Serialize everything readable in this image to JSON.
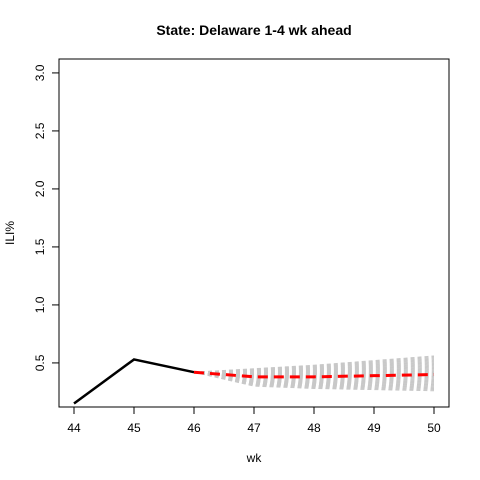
{
  "chart_data": {
    "type": "line",
    "title": "State: Delaware 1-4 wk ahead",
    "xlabel": "wk",
    "ylabel": "ILI%",
    "xlim": [
      44,
      50
    ],
    "ylim": [
      0.12,
      3.12
    ],
    "x_ticks": [
      "44",
      "45",
      "46",
      "47",
      "48",
      "49",
      "50"
    ],
    "y_ticks": [
      "0.5",
      "1.0",
      "1.5",
      "2.0",
      "2.5",
      "3.0"
    ],
    "grid": false,
    "legend": "none",
    "series": [
      {
        "role": "observed",
        "color": "#000000",
        "style": "solid",
        "x": [
          44,
          45,
          46
        ],
        "y": [
          0.15,
          0.53,
          0.42
        ]
      },
      {
        "role": "forecast-median",
        "color": "#ff0000",
        "style": "dashed",
        "x": [
          46,
          47,
          48,
          49,
          50
        ],
        "y": [
          0.42,
          0.38,
          0.38,
          0.39,
          0.4
        ]
      },
      {
        "role": "forecast-ensemble",
        "color": "#c8c8c8",
        "style": "dashed",
        "start": [
          46,
          0.42
        ],
        "x": [
          47,
          48,
          49,
          50
        ],
        "lower": [
          0.3,
          0.28,
          0.27,
          0.26
        ],
        "upper": [
          0.45,
          0.48,
          0.52,
          0.56
        ],
        "count": 40
      }
    ]
  }
}
